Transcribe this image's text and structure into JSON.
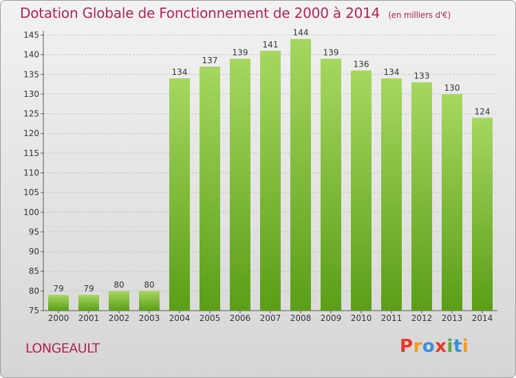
{
  "header": {
    "title": "Dotation Globale de Fonctionnement de 2000 à 2014",
    "unit_note": "(en milliers d'€)"
  },
  "footer": {
    "commune": "LONGEAULT",
    "brand": "Proxiti"
  },
  "colors": {
    "title": "#b0245a",
    "bar_top": "#a6d760",
    "bar_bottom": "#5a9e17",
    "axis_text": "#333333",
    "grid": "#c8c8c8",
    "brand_letters": [
      "#e3392c",
      "#f29a1f",
      "#3a8fd9",
      "#e3392c",
      "#58a84a",
      "#3a8fd9",
      "#f29a1f"
    ]
  },
  "chart_data": {
    "type": "bar",
    "categories": [
      "2000",
      "2001",
      "2002",
      "2003",
      "2004",
      "2005",
      "2006",
      "2007",
      "2008",
      "2009",
      "2010",
      "2011",
      "2012",
      "2013",
      "2014"
    ],
    "values": [
      79,
      79,
      80,
      80,
      134,
      137,
      139,
      141,
      144,
      139,
      136,
      134,
      133,
      130,
      124
    ],
    "title": "Dotation Globale de Fonctionnement de 2000 à 2014",
    "xlabel": "",
    "ylabel": "",
    "ylim": [
      75,
      145
    ],
    "yticks": [
      75,
      80,
      85,
      90,
      95,
      100,
      105,
      110,
      115,
      120,
      125,
      130,
      135,
      140,
      145
    ],
    "grid": true,
    "data_labels": true
  }
}
